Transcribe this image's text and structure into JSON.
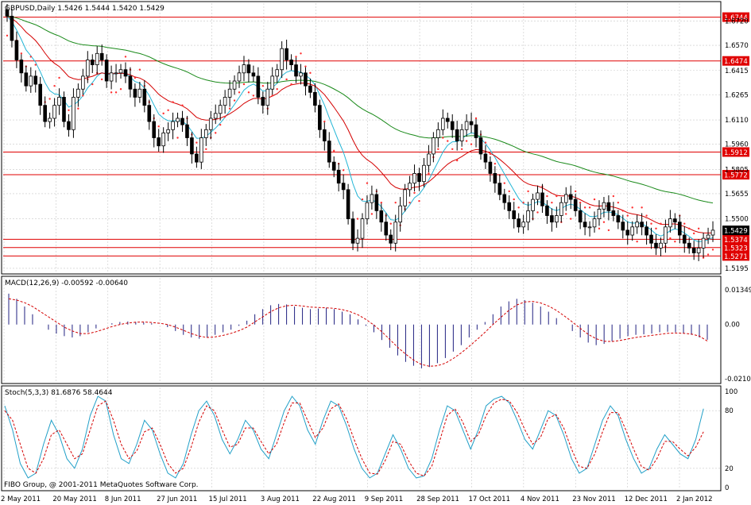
{
  "colors": {
    "background": "#ffffff",
    "grid": "#c8c8c8",
    "frame": "#000000",
    "candle": "#000000",
    "ema_fast": "#22b5d6",
    "ema_mid": "#d40000",
    "ema_slow": "#1a8a1a",
    "psar": "#ff3030",
    "hline": "#e00000",
    "hline_label_bg": "#e00000",
    "hline_label_text": "#ffffff",
    "current_label_bg": "#000000",
    "current_label_text": "#ffffff",
    "macd_hist": "#202080",
    "macd_signal": "#d40000",
    "stoch_main": "#22a0c8",
    "stoch_signal": "#d40000"
  },
  "price_panel": {
    "title": "GBPUSD,Daily  1.5426 1.5444 1.5420 1.5429",
    "y_ticks": [
      "1.6720",
      "1.6570",
      "1.6415",
      "1.6265",
      "1.6110",
      "1.5960",
      "1.5805",
      "1.5655",
      "1.5500",
      "1.5195"
    ],
    "current_price": "1.5429"
  },
  "macd_panel": {
    "title": "MACD(12,26,9) -0.00592 -0.00640",
    "y_ticks": [
      "0.01349",
      "0.00",
      "-0.02105"
    ]
  },
  "stoch_panel": {
    "title": "Stoch(5,3,3) 81.6876 58.4644",
    "y_ticks": [
      "100",
      "80",
      "20",
      "0"
    ]
  },
  "copyright": "FIBO Group, @ 2001-2011 MetaQuotes Software Corp.",
  "x_ticks": [
    "2 May 2011",
    "20 May 2011",
    "8 Jun 2011",
    "27 Jun 2011",
    "15 Jul 2011",
    "3 Aug 2011",
    "22 Aug 2011",
    "9 Sep 2011",
    "28 Sep 2011",
    "17 Oct 2011",
    "4 Nov 2011",
    "23 Nov 2011",
    "12 Dec 2011",
    "2 Jan 2012"
  ],
  "chart_data": [
    {
      "type": "candlestick",
      "title": "GBPUSD,Daily  1.5426 1.5444 1.5420 1.5429",
      "ylim": [
        1.517,
        1.683
      ],
      "levels": [
        {
          "value": 1.6744,
          "label": "1.6744"
        },
        {
          "value": 1.6474,
          "label": "1.6474"
        },
        {
          "value": 1.5912,
          "label": "1.5912"
        },
        {
          "value": 1.5772,
          "label": "1.5772"
        },
        {
          "value": 1.5374,
          "label": "1.5374"
        },
        {
          "value": 1.5323,
          "label": "1.5323"
        },
        {
          "value": 1.5271,
          "label": "1.5271"
        }
      ],
      "overlays": [
        "ema-fast",
        "ema-mid",
        "ema-slow",
        "parabolic-sar"
      ],
      "close": [
        1.675,
        1.66,
        1.648,
        1.64,
        1.632,
        1.638,
        1.633,
        1.62,
        1.61,
        1.612,
        1.62,
        1.625,
        1.61,
        1.605,
        1.625,
        1.63,
        1.638,
        1.648,
        1.645,
        1.652,
        1.648,
        1.635,
        1.64,
        1.64,
        1.642,
        1.638,
        1.63,
        1.625,
        1.63,
        1.62,
        1.61,
        1.6,
        1.595,
        1.603,
        1.605,
        1.61,
        1.612,
        1.608,
        1.6,
        1.59,
        1.585,
        1.6,
        1.605,
        1.612,
        1.615,
        1.62,
        1.625,
        1.63,
        1.635,
        1.64,
        1.645,
        1.64,
        1.638,
        1.625,
        1.62,
        1.63,
        1.638,
        1.642,
        1.655,
        1.648,
        1.645,
        1.638,
        1.64,
        1.632,
        1.628,
        1.62,
        1.605,
        1.598,
        1.585,
        1.58,
        1.572,
        1.568,
        1.55,
        1.535,
        1.538,
        1.55,
        1.56,
        1.565,
        1.555,
        1.548,
        1.54,
        1.535,
        1.548,
        1.558,
        1.568,
        1.572,
        1.578,
        1.573,
        1.583,
        1.59,
        1.6,
        1.605,
        1.612,
        1.61,
        1.605,
        1.598,
        1.605,
        1.61,
        1.608,
        1.6,
        1.59,
        1.585,
        1.578,
        1.572,
        1.565,
        1.56,
        1.555,
        1.55,
        1.545,
        1.548,
        1.555,
        1.562,
        1.566,
        1.558,
        1.552,
        1.548,
        1.552,
        1.56,
        1.565,
        1.562,
        1.555,
        1.548,
        1.545,
        1.545,
        1.55,
        1.556,
        1.56,
        1.555,
        1.552,
        1.548,
        1.543,
        1.54,
        1.545,
        1.548,
        1.545,
        1.54,
        1.535,
        1.532,
        1.535,
        1.545,
        1.55,
        1.548,
        1.54,
        1.535,
        1.532,
        1.529,
        1.532,
        1.538,
        1.54,
        1.543
      ]
    },
    {
      "type": "bar",
      "title": "MACD(12,26,9) -0.00592 -0.00640",
      "ylim": [
        -0.02105,
        0.01349
      ],
      "series": [
        {
          "name": "MACD",
          "values": [
            0.012,
            0.01,
            0.007,
            0.004,
            0.0,
            -0.002,
            -0.0035,
            -0.0045,
            -0.005,
            -0.0045,
            -0.003,
            -0.0015,
            0.0,
            0.0005,
            0.001,
            0.0012,
            0.001,
            0.0008,
            0.0005,
            0.0,
            -0.001,
            -0.0025,
            -0.004,
            -0.005,
            -0.0055,
            -0.005,
            -0.004,
            -0.003,
            -0.002,
            -0.0005,
            0.0015,
            0.004,
            0.006,
            0.0075,
            0.008,
            0.0078,
            0.007,
            0.0065,
            0.006,
            0.0062,
            0.0065,
            0.006,
            0.005,
            0.004,
            0.002,
            -0.0005,
            -0.003,
            -0.006,
            -0.009,
            -0.012,
            -0.0145,
            -0.016,
            -0.017,
            -0.0165,
            -0.015,
            -0.013,
            -0.0105,
            -0.008,
            -0.005,
            -0.002,
            0.001,
            0.004,
            0.007,
            0.009,
            0.01,
            0.0095,
            0.0085,
            0.007,
            0.005,
            0.0025,
            0.0,
            -0.0025,
            -0.005,
            -0.007,
            -0.008,
            -0.0075,
            -0.0065,
            -0.0055,
            -0.0045,
            -0.004,
            -0.0038,
            -0.0035,
            -0.003,
            -0.0028,
            -0.003,
            -0.0035,
            -0.004,
            -0.005,
            -0.0059
          ]
        },
        {
          "name": "Signal",
          "values": [
            0.01,
            0.0095,
            0.0085,
            0.007,
            0.005,
            0.003,
            0.001,
            -0.001,
            -0.0025,
            -0.0035,
            -0.0035,
            -0.0028,
            -0.0018,
            -0.0008,
            0.0,
            0.0006,
            0.0009,
            0.001,
            0.0008,
            0.0005,
            0.0,
            -0.001,
            -0.0022,
            -0.0035,
            -0.0045,
            -0.005,
            -0.0048,
            -0.0042,
            -0.0034,
            -0.0024,
            -0.001,
            0.001,
            0.003,
            0.005,
            0.0065,
            0.0073,
            0.0075,
            0.0072,
            0.0068,
            0.0066,
            0.0065,
            0.0063,
            0.0058,
            0.005,
            0.0038,
            0.002,
            -0.0002,
            -0.0028,
            -0.0058,
            -0.0088,
            -0.0115,
            -0.0138,
            -0.0155,
            -0.0162,
            -0.016,
            -0.015,
            -0.0132,
            -0.011,
            -0.0085,
            -0.0058,
            -0.003,
            0.0,
            0.0028,
            0.0055,
            0.0076,
            0.0088,
            0.009,
            0.0084,
            0.0072,
            0.0055,
            0.0033,
            0.001,
            -0.0015,
            -0.0038,
            -0.0055,
            -0.0065,
            -0.0066,
            -0.0062,
            -0.0056,
            -0.005,
            -0.0046,
            -0.0042,
            -0.0038,
            -0.0034,
            -0.0033,
            -0.0034,
            -0.0037,
            -0.0045,
            -0.0064
          ]
        }
      ]
    },
    {
      "type": "line",
      "title": "Stoch(5,3,3) 81.6876 58.4644",
      "ylim": [
        0,
        100
      ],
      "series": [
        {
          "name": "%K",
          "values": [
            85,
            60,
            25,
            10,
            15,
            45,
            70,
            55,
            30,
            20,
            40,
            75,
            95,
            90,
            55,
            30,
            25,
            45,
            70,
            60,
            35,
            15,
            10,
            25,
            55,
            80,
            90,
            75,
            50,
            35,
            50,
            70,
            60,
            40,
            30,
            55,
            80,
            95,
            85,
            60,
            45,
            70,
            90,
            85,
            65,
            40,
            20,
            10,
            15,
            35,
            55,
            40,
            20,
            10,
            12,
            30,
            60,
            85,
            80,
            60,
            40,
            60,
            85,
            92,
            95,
            88,
            70,
            50,
            40,
            60,
            80,
            75,
            55,
            30,
            15,
            20,
            45,
            70,
            85,
            75,
            50,
            30,
            15,
            20,
            40,
            55,
            45,
            35,
            30,
            50,
            82
          ]
        },
        {
          "name": "%D",
          "values": [
            80,
            70,
            45,
            20,
            15,
            30,
            55,
            60,
            45,
            30,
            35,
            60,
            85,
            90,
            70,
            45,
            30,
            38,
            58,
            62,
            45,
            25,
            15,
            20,
            42,
            68,
            85,
            80,
            60,
            42,
            45,
            62,
            62,
            48,
            35,
            45,
            68,
            88,
            88,
            70,
            52,
            62,
            82,
            87,
            72,
            50,
            30,
            15,
            14,
            28,
            48,
            45,
            28,
            15,
            12,
            22,
            48,
            75,
            82,
            68,
            48,
            55,
            75,
            88,
            92,
            90,
            78,
            60,
            45,
            52,
            72,
            76,
            62,
            40,
            22,
            20,
            35,
            58,
            78,
            78,
            60,
            40,
            22,
            18,
            30,
            48,
            48,
            40,
            33,
            42,
            58
          ]
        }
      ]
    }
  ]
}
